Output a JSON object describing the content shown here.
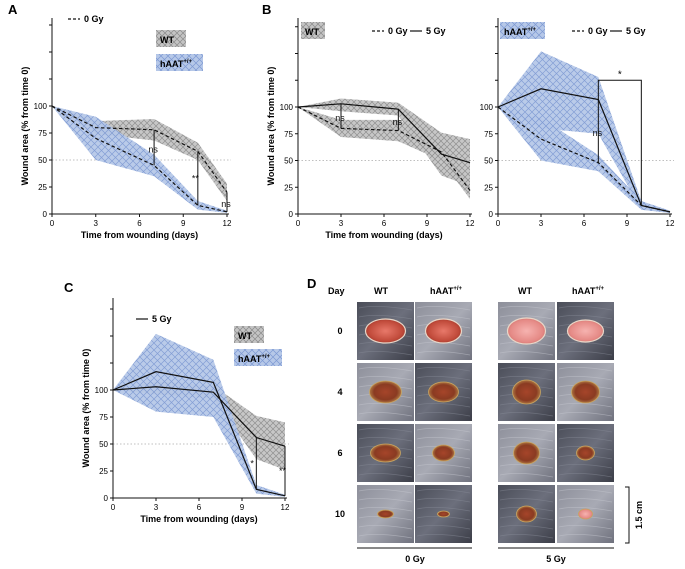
{
  "colors": {
    "wt_band": "#b5b5b5",
    "wt_hatch": "#7a7a7a",
    "haat_band": "#a9bfe3",
    "haat_hatch": "#6f8fcf",
    "haat_dark": "#7f96d6",
    "axis": "#111111",
    "ref_line": "#aaaaaa"
  },
  "chart_data": [
    {
      "panel": "A",
      "type": "line",
      "xlabel": "Time from wounding (days)",
      "ylabel": "Wound area (% from time 0)",
      "xlim": [
        0,
        12
      ],
      "ylim": [
        0,
        100
      ],
      "x_ticks": [
        0,
        3,
        6,
        9,
        12
      ],
      "y_ticks": [
        0,
        25,
        50,
        75,
        100
      ],
      "legend_lines": [
        {
          "label": "0 Gy",
          "style": "dashed"
        }
      ],
      "legend_groups": [
        {
          "label": "WT",
          "fill": "wt"
        },
        {
          "label": "hAAT",
          "sup": "+/+",
          "fill": "haat"
        }
      ],
      "series": [
        {
          "group": "WT",
          "dose": "0 Gy",
          "style": "dashed",
          "x": [
            0,
            3,
            7,
            10,
            12
          ],
          "y": [
            100,
            80,
            78,
            58,
            20
          ],
          "upper": [
            100,
            86,
            88,
            66,
            28
          ],
          "lower": [
            100,
            74,
            68,
            50,
            12
          ]
        },
        {
          "group": "hAAT",
          "dose": "0 Gy",
          "style": "dashed",
          "x": [
            0,
            3,
            7,
            10,
            12
          ],
          "y": [
            100,
            70,
            45,
            8,
            2
          ],
          "upper": [
            100,
            90,
            55,
            12,
            3
          ],
          "lower": [
            100,
            50,
            35,
            4,
            1
          ]
        }
      ],
      "annotations": [
        {
          "label": "ns",
          "x": 7,
          "y_top": 78,
          "y_bottom": 45
        },
        {
          "label": "**",
          "x": 10,
          "y_top": 58,
          "y_bottom": 8
        },
        {
          "label": "ns",
          "x": 12,
          "y_top": 20,
          "y_bottom": 2
        }
      ]
    },
    {
      "panel": "B",
      "type": "line",
      "xlabel": "Time from wounding (days)",
      "ylabel": "Wound area (% from time 0)",
      "xlim": [
        0,
        12
      ],
      "ylim": [
        0,
        100
      ],
      "x_ticks": [
        0,
        3,
        6,
        9,
        12
      ],
      "y_ticks": [
        0,
        25,
        50,
        75,
        100
      ],
      "sub_panels": [
        {
          "group_label": "WT",
          "group_sup": "",
          "fill": "wt",
          "legend_lines": [
            {
              "label": "0 Gy",
              "style": "dashed"
            },
            {
              "label": "5 Gy",
              "style": "solid"
            }
          ],
          "series": [
            {
              "dose": "0 Gy",
              "style": "dashed",
              "x": [
                0,
                3,
                7,
                10,
                12
              ],
              "y": [
                100,
                80,
                78,
                58,
                22
              ],
              "upper": [
                100,
                88,
                88,
                68,
                30
              ],
              "lower": [
                100,
                72,
                68,
                50,
                14
              ]
            },
            {
              "dose": "5 Gy",
              "style": "solid",
              "x": [
                0,
                3,
                7,
                10,
                12
              ],
              "y": [
                100,
                103,
                98,
                56,
                48
              ],
              "upper": [
                100,
                108,
                104,
                76,
                70
              ],
              "lower": [
                100,
                96,
                92,
                36,
                26
              ]
            }
          ],
          "annotations": [
            {
              "label": "ns",
              "x": 3,
              "y_top": 103,
              "y_bottom": 80
            },
            {
              "label": "ns",
              "x": 7,
              "y_top": 98,
              "y_bottom": 78
            }
          ]
        },
        {
          "group_label": "hAAT",
          "group_sup": "+/+",
          "fill": "haat",
          "legend_lines": [
            {
              "label": "0 Gy",
              "style": "dashed"
            },
            {
              "label": "5 Gy",
              "style": "solid"
            }
          ],
          "series": [
            {
              "dose": "0 Gy",
              "style": "dashed",
              "x": [
                0,
                3,
                7,
                10,
                12
              ],
              "y": [
                100,
                70,
                48,
                8,
                2
              ],
              "upper": [
                100,
                90,
                55,
                12,
                3
              ],
              "lower": [
                100,
                50,
                40,
                4,
                1
              ]
            },
            {
              "dose": "5 Gy",
              "style": "solid",
              "x": [
                0,
                3,
                7,
                10,
                12
              ],
              "y": [
                100,
                117,
                107,
                8,
                2
              ],
              "upper": [
                100,
                152,
                128,
                12,
                3
              ],
              "lower": [
                100,
                80,
                75,
                4,
                1
              ]
            }
          ],
          "annotations": [
            {
              "label": "ns",
              "x": 7,
              "y_top": 107,
              "y_bottom": 48
            },
            {
              "label": "*",
              "bracket": true,
              "x1": 7,
              "x2": 10,
              "y_top": 125,
              "y_low1": 107,
              "y_low2": 8
            }
          ]
        }
      ]
    },
    {
      "panel": "C",
      "type": "line",
      "xlabel": "Time from wounding (days)",
      "ylabel": "Wound area (% from time 0)",
      "xlim": [
        0,
        12
      ],
      "ylim": [
        0,
        100
      ],
      "x_ticks": [
        0,
        3,
        6,
        9,
        12
      ],
      "y_ticks": [
        0,
        25,
        50,
        75,
        100
      ],
      "legend_lines": [
        {
          "label": "5 Gy",
          "style": "solid"
        }
      ],
      "legend_groups": [
        {
          "label": "WT",
          "fill": "wt"
        },
        {
          "label": "hAAT",
          "sup": "+/+",
          "fill": "haat"
        }
      ],
      "series": [
        {
          "group": "WT",
          "dose": "5 Gy",
          "style": "solid",
          "x": [
            0,
            3,
            7,
            10,
            12
          ],
          "y": [
            100,
            103,
            98,
            56,
            48
          ],
          "upper": [
            100,
            108,
            104,
            76,
            70
          ],
          "lower": [
            100,
            96,
            92,
            36,
            26
          ]
        },
        {
          "group": "hAAT",
          "dose": "5 Gy",
          "style": "solid",
          "x": [
            0,
            3,
            7,
            10,
            12
          ],
          "y": [
            100,
            117,
            107,
            8,
            2
          ],
          "upper": [
            100,
            152,
            128,
            12,
            3
          ],
          "lower": [
            100,
            80,
            75,
            4,
            1
          ]
        }
      ],
      "annotations": [
        {
          "label": "*",
          "x": 10,
          "y_top": 56,
          "y_bottom": 8
        },
        {
          "label": "**",
          "x": 12,
          "y_top": 48,
          "y_bottom": 2
        }
      ]
    }
  ],
  "photo_panel": {
    "label": "D",
    "row_header": "Day",
    "rows": [
      "0",
      "4",
      "6",
      "10"
    ],
    "groups": [
      {
        "dose": "0 Gy",
        "columns": [
          {
            "label": "WT",
            "sup": ""
          },
          {
            "label": "hAAT",
            "sup": "+/+"
          }
        ]
      },
      {
        "dose": "5 Gy",
        "columns": [
          {
            "label": "WT",
            "sup": ""
          },
          {
            "label": "hAAT",
            "sup": "+/+"
          }
        ]
      }
    ],
    "scale_bar": "1.5 cm"
  },
  "panel_labels": [
    "A",
    "B",
    "C",
    "D"
  ]
}
